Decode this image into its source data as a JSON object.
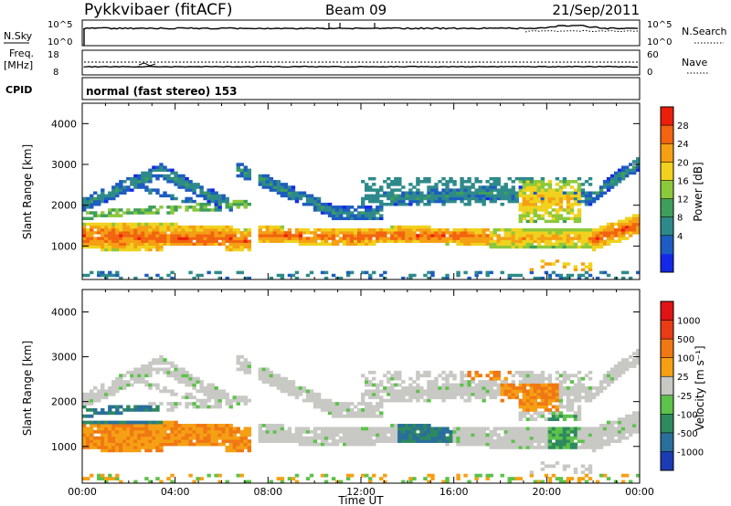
{
  "header": {
    "radar": "Pykkvibaer (fitACF)",
    "beam": "Beam 09",
    "date": "21/Sep/2011"
  },
  "nsky_panel": {
    "left_label": "N.Sky",
    "right_label": "N.Search",
    "left_ticks": [
      "10^5",
      "10^0"
    ],
    "right_ticks": [
      "10^5",
      "10^0"
    ]
  },
  "freq_panel": {
    "left_label_1": "Freq.",
    "left_label_2": "[MHz]",
    "right_label": "Nave",
    "left_ticks": [
      "18",
      "8"
    ],
    "right_ticks": [
      "60",
      "0"
    ]
  },
  "cpid_panel": {
    "label": "CPID",
    "text": "normal (fast stereo) 153"
  },
  "chart_data": [
    {
      "type": "heatmap",
      "title": "",
      "ylabel": "Slant Range [km]",
      "xlabel": "",
      "ylim": [
        180,
        4500
      ],
      "xlim": [
        0,
        24
      ],
      "y_ticks": [
        "4000",
        "3000",
        "2000",
        "1000"
      ],
      "colorbar": {
        "label": "Power [dB]",
        "range": [
          0,
          32
        ],
        "ticks": [
          "28",
          "24",
          "20",
          "16",
          "12",
          "8",
          "4"
        ],
        "colors": [
          "#1428e8",
          "#1d5cc0",
          "#2e8a8a",
          "#3f9f5a",
          "#8cc83c",
          "#f0d21e",
          "#f5a014",
          "#f26410",
          "#eb1e0a"
        ]
      }
    },
    {
      "type": "heatmap",
      "title": "",
      "ylabel": "Slant Range [km]",
      "xlabel": "Time UT",
      "ylim": [
        180,
        4500
      ],
      "xlim": [
        0,
        24
      ],
      "y_ticks": [
        "4000",
        "3000",
        "2000",
        "1000"
      ],
      "x_ticks": [
        "00:00",
        "04:00",
        "08:00",
        "12:00",
        "16:00",
        "20:00",
        "00:00"
      ],
      "colorbar": {
        "label": "Velocity [m s⁻¹]",
        "ticks": [
          "1000",
          "500",
          "100",
          "25",
          "-25",
          "-100",
          "-500",
          "-1000"
        ],
        "colors": [
          "#1c3cb4",
          "#2a6f9a",
          "#2e8a5e",
          "#5cc24a",
          "#c8c8c4",
          "#f5a014",
          "#f07814",
          "#e83c14",
          "#e01414"
        ]
      }
    }
  ]
}
